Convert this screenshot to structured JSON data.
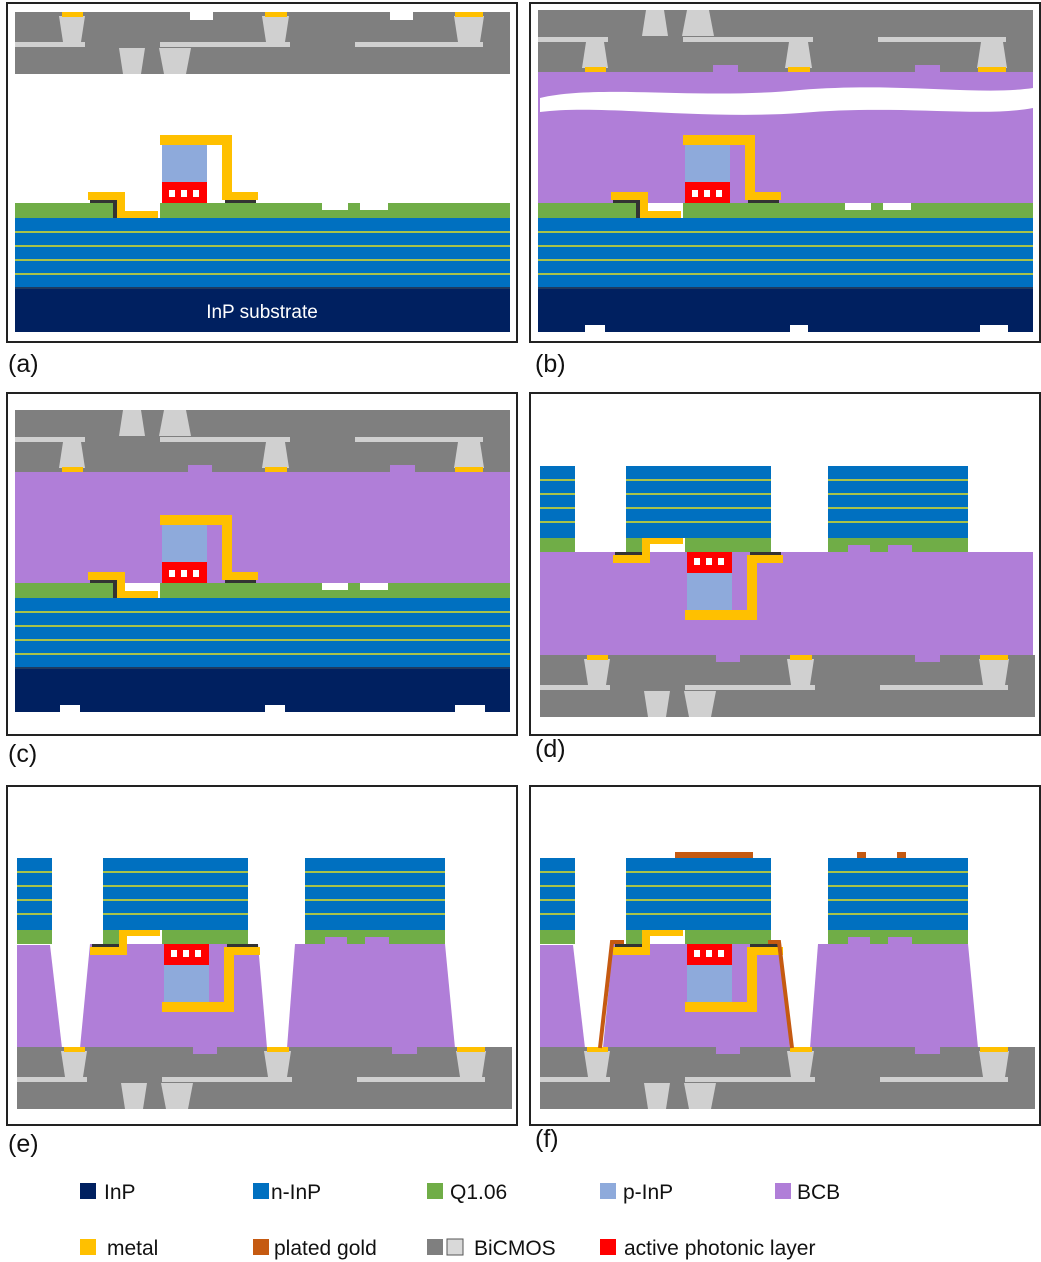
{
  "panels": [
    {
      "label": "(a)"
    },
    {
      "label": "(b)"
    },
    {
      "label": "(c)"
    },
    {
      "label": "(d)"
    },
    {
      "label": "(e)"
    },
    {
      "label": "(f)"
    }
  ],
  "substrate_label": "InP substrate",
  "legend": [
    {
      "label": "InP"
    },
    {
      "label": "n-InP"
    },
    {
      "label": "Q1.06"
    },
    {
      "label": "p-InP"
    },
    {
      "label": "BCB"
    },
    {
      "label": "metal"
    },
    {
      "label": "plated gold"
    },
    {
      "label": "BiCMOS"
    },
    {
      "label": "active photonic layer"
    }
  ]
}
